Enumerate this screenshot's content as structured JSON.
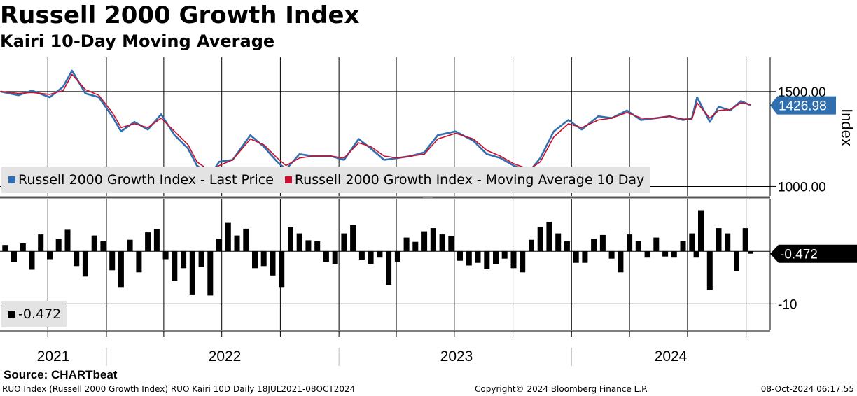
{
  "header": {
    "title": "Russell 2000 Growth Index",
    "subtitle": "Kairi 10-Day Moving Average"
  },
  "colors": {
    "last_price": "#2f6faf",
    "moving_average": "#c8102e",
    "kairi": "#000000",
    "legend_bg": "#e3e3e3",
    "grid": "#000000"
  },
  "legend": {
    "top": [
      {
        "name": "Russell 2000 Growth Index - Last Price",
        "color": "#2f6faf"
      },
      {
        "name": "Russell 2000 Growth Index - Moving Average 10 Day",
        "color": "#c8102e"
      }
    ],
    "bottom": [
      {
        "name": "-0.472",
        "color": "#000000"
      }
    ]
  },
  "chart_data": [
    {
      "type": "line",
      "ylabel": "Index",
      "ylim": [
        950,
        1680
      ],
      "y_ticks": [
        "1000.00",
        "1500.00"
      ],
      "y_tick_values": [
        1000,
        1500
      ],
      "last_value_label": "1426.98",
      "last_value": 1426.98,
      "x_labels": [
        "2021",
        "2022",
        "2023",
        "2024"
      ],
      "x_range": [
        "2021-07-18",
        "2024-10-08"
      ],
      "series": [
        {
          "name": "Russell 2000 Growth Index - Last Price",
          "color": "#2f6faf",
          "x": [
            "2021-07-19",
            "2021-08-16",
            "2021-09-06",
            "2021-10-04",
            "2021-10-25",
            "2021-11-08",
            "2021-11-29",
            "2021-12-20",
            "2022-01-10",
            "2022-01-24",
            "2022-02-14",
            "2022-03-07",
            "2022-03-28",
            "2022-04-18",
            "2022-05-09",
            "2022-05-23",
            "2022-06-13",
            "2022-06-27",
            "2022-07-18",
            "2022-08-15",
            "2022-09-05",
            "2022-09-26",
            "2022-10-10",
            "2022-10-31",
            "2022-11-21",
            "2022-12-19",
            "2023-01-09",
            "2023-02-01",
            "2023-02-20",
            "2023-03-13",
            "2023-04-03",
            "2023-04-24",
            "2023-05-15",
            "2023-06-05",
            "2023-07-03",
            "2023-07-31",
            "2023-08-21",
            "2023-09-11",
            "2023-10-02",
            "2023-10-27",
            "2023-11-13",
            "2023-12-04",
            "2023-12-27",
            "2024-01-17",
            "2024-02-12",
            "2024-03-04",
            "2024-03-28",
            "2024-04-19",
            "2024-05-13",
            "2024-06-03",
            "2024-06-24",
            "2024-07-08",
            "2024-07-16",
            "2024-08-05",
            "2024-08-19",
            "2024-09-06",
            "2024-09-23",
            "2024-10-08"
          ],
          "values": [
            1500,
            1480,
            1505,
            1470,
            1525,
            1610,
            1490,
            1470,
            1370,
            1290,
            1340,
            1300,
            1380,
            1270,
            1200,
            1110,
            1060,
            1130,
            1140,
            1270,
            1210,
            1130,
            1090,
            1170,
            1160,
            1160,
            1140,
            1250,
            1200,
            1140,
            1150,
            1160,
            1180,
            1270,
            1290,
            1240,
            1170,
            1150,
            1110,
            1080,
            1150,
            1290,
            1350,
            1300,
            1370,
            1360,
            1400,
            1350,
            1360,
            1370,
            1350,
            1360,
            1470,
            1340,
            1420,
            1400,
            1450,
            1426.98
          ]
        },
        {
          "name": "Russell 2000 Growth Index - Moving Average 10 Day",
          "color": "#c8102e",
          "x": [
            "2021-07-19",
            "2021-08-16",
            "2021-09-06",
            "2021-10-04",
            "2021-10-25",
            "2021-11-08",
            "2021-11-29",
            "2021-12-20",
            "2022-01-10",
            "2022-01-24",
            "2022-02-14",
            "2022-03-07",
            "2022-03-28",
            "2022-04-18",
            "2022-05-09",
            "2022-05-23",
            "2022-06-13",
            "2022-06-27",
            "2022-07-18",
            "2022-08-15",
            "2022-09-05",
            "2022-09-26",
            "2022-10-10",
            "2022-10-31",
            "2022-11-21",
            "2022-12-19",
            "2023-01-09",
            "2023-02-01",
            "2023-02-20",
            "2023-03-13",
            "2023-04-03",
            "2023-04-24",
            "2023-05-15",
            "2023-06-05",
            "2023-07-03",
            "2023-07-31",
            "2023-08-21",
            "2023-09-11",
            "2023-10-02",
            "2023-10-27",
            "2023-11-13",
            "2023-12-04",
            "2023-12-27",
            "2024-01-17",
            "2024-02-12",
            "2024-03-04",
            "2024-03-28",
            "2024-04-19",
            "2024-05-13",
            "2024-06-03",
            "2024-06-24",
            "2024-07-08",
            "2024-07-16",
            "2024-08-05",
            "2024-08-19",
            "2024-09-06",
            "2024-09-23",
            "2024-10-08"
          ],
          "values": [
            1500,
            1490,
            1495,
            1485,
            1505,
            1590,
            1510,
            1480,
            1390,
            1310,
            1330,
            1310,
            1360,
            1290,
            1220,
            1130,
            1080,
            1110,
            1140,
            1250,
            1220,
            1150,
            1110,
            1150,
            1160,
            1160,
            1150,
            1230,
            1210,
            1160,
            1150,
            1160,
            1170,
            1250,
            1280,
            1250,
            1190,
            1160,
            1120,
            1090,
            1130,
            1260,
            1330,
            1310,
            1350,
            1360,
            1390,
            1360,
            1360,
            1370,
            1355,
            1355,
            1440,
            1360,
            1400,
            1405,
            1440,
            1432
          ]
        }
      ]
    },
    {
      "type": "bar",
      "ylabel": "",
      "ylim": [
        -15,
        10
      ],
      "y_ticks": [
        "-10"
      ],
      "y_tick_values": [
        -10
      ],
      "last_value_label": "-0.472",
      "last_value": -0.472,
      "series": [
        {
          "name": "-0.472",
          "color": "#000000",
          "x": [
            "2021-07-26",
            "2021-08-09",
            "2021-08-23",
            "2021-09-06",
            "2021-09-20",
            "2021-10-04",
            "2021-10-18",
            "2021-11-01",
            "2021-11-15",
            "2021-11-29",
            "2021-12-13",
            "2021-12-27",
            "2022-01-10",
            "2022-01-24",
            "2022-02-07",
            "2022-02-21",
            "2022-03-07",
            "2022-03-21",
            "2022-04-04",
            "2022-04-18",
            "2022-05-02",
            "2022-05-16",
            "2022-05-30",
            "2022-06-13",
            "2022-06-27",
            "2022-07-11",
            "2022-07-25",
            "2022-08-08",
            "2022-08-22",
            "2022-09-05",
            "2022-09-19",
            "2022-10-03",
            "2022-10-17",
            "2022-10-31",
            "2022-11-14",
            "2022-11-28",
            "2022-12-12",
            "2022-12-26",
            "2023-01-09",
            "2023-01-23",
            "2023-02-06",
            "2023-02-20",
            "2023-03-06",
            "2023-03-20",
            "2023-04-03",
            "2023-04-17",
            "2023-05-01",
            "2023-05-15",
            "2023-05-29",
            "2023-06-12",
            "2023-06-26",
            "2023-07-10",
            "2023-07-24",
            "2023-08-07",
            "2023-08-21",
            "2023-09-04",
            "2023-09-18",
            "2023-10-02",
            "2023-10-16",
            "2023-10-30",
            "2023-11-13",
            "2023-11-27",
            "2023-12-11",
            "2023-12-25",
            "2024-01-08",
            "2024-01-22",
            "2024-02-05",
            "2024-02-19",
            "2024-03-04",
            "2024-03-18",
            "2024-04-01",
            "2024-04-15",
            "2024-04-29",
            "2024-05-13",
            "2024-05-27",
            "2024-06-10",
            "2024-06-24",
            "2024-07-08",
            "2024-07-15",
            "2024-07-22",
            "2024-08-05",
            "2024-08-19",
            "2024-09-02",
            "2024-09-16",
            "2024-09-30",
            "2024-10-08"
          ],
          "values": [
            1.2,
            -2.0,
            1.5,
            -3.5,
            3.2,
            -1.5,
            2.4,
            4.1,
            -2.8,
            -4.8,
            3.0,
            1.9,
            -3.6,
            -6.8,
            2.2,
            -4.0,
            3.6,
            4.2,
            -1.5,
            -5.6,
            -3.2,
            -8.2,
            -3.0,
            -8.4,
            2.4,
            5.4,
            3.0,
            4.3,
            -3.2,
            -2.8,
            -4.6,
            -6.8,
            4.6,
            3.4,
            2.1,
            1.9,
            -2.0,
            -2.4,
            3.4,
            5.0,
            -1.6,
            -2.4,
            -1.2,
            -6.4,
            -2.0,
            2.6,
            1.8,
            3.8,
            4.4,
            3.2,
            2.9,
            -1.8,
            -2.7,
            -2.2,
            -3.4,
            -2.4,
            -1.4,
            -3.2,
            -4.0,
            2.2,
            4.6,
            5.6,
            3.4,
            1.9,
            -2.2,
            -2.2,
            2.4,
            3.1,
            -1.4,
            -4.0,
            3.2,
            2.0,
            -1.2,
            2.6,
            -1.0,
            -1.2,
            1.9,
            3.4,
            -1.2,
            7.8,
            -7.4,
            4.4,
            3.4,
            -3.8,
            4.4,
            -0.472
          ]
        }
      ]
    }
  ],
  "footer": {
    "source": "Source: CHARTbeat",
    "left": "RUO Index (Russell 2000 Growth Index) RUO Kairi 10D  Daily 18JUL2021-08OCT2024",
    "center": "Copyright© 2024 Bloomberg Finance L.P.",
    "right": "08-Oct-2024 06:17:55"
  }
}
